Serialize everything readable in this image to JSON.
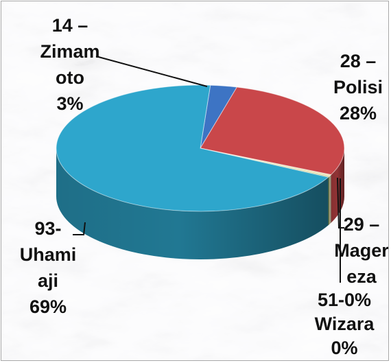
{
  "chart_data": {
    "type": "pie",
    "style": "3d",
    "slices": [
      {
        "id": "zimamoto",
        "value": 3,
        "percent_label": "3%",
        "label_lines": [
          "14 –",
          "Zimam",
          "oto",
          "3%"
        ],
        "color": "#3d74c4"
      },
      {
        "id": "polisi",
        "value": 28,
        "percent_label": "28%",
        "label_lines": [
          "28 –",
          "Polisi",
          "28%"
        ],
        "color": "#c9474a"
      },
      {
        "id": "magereza",
        "value": 0.5,
        "percent_label": "0%",
        "label_lines": [
          "29 –",
          "Mager",
          "eza"
        ],
        "color": "#ece3b8"
      },
      {
        "id": "wizara",
        "value": 0.2,
        "percent_label": "0%",
        "label_lines": [
          "51-0%",
          "Wizara",
          "0%"
        ],
        "color": "#8a9e3c"
      },
      {
        "id": "uhamiaji",
        "value": 69,
        "percent_label": "69%",
        "label_lines": [
          "93-",
          "Uhami",
          "aji",
          "69%"
        ],
        "color": "#2ea6cc"
      }
    ],
    "background": "marble",
    "legend": "none"
  }
}
